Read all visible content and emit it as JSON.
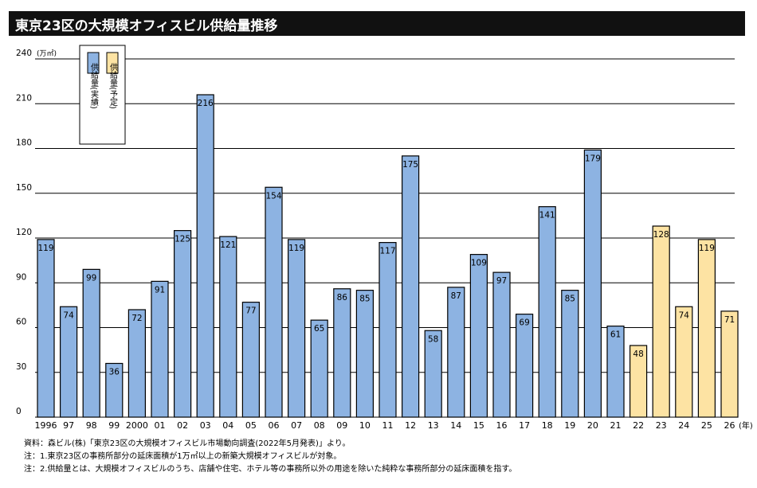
{
  "title": "東京23区の大規模オフィスビル供給量推移",
  "chart_data": {
    "type": "bar",
    "title": "東京23区の大規模オフィスビル供給量推移",
    "ylabel": "(万㎡)",
    "xlabel": "(年)",
    "ylim": [
      0,
      240
    ],
    "yticks": [
      0,
      30,
      60,
      90,
      120,
      150,
      180,
      210,
      240
    ],
    "grid": true,
    "legend_position": "top-left",
    "categories": [
      "1996",
      "97",
      "98",
      "99",
      "2000",
      "01",
      "02",
      "03",
      "04",
      "05",
      "06",
      "07",
      "08",
      "09",
      "10",
      "11",
      "12",
      "13",
      "14",
      "15",
      "16",
      "17",
      "18",
      "19",
      "20",
      "21",
      "22",
      "23",
      "24",
      "25",
      "26"
    ],
    "values": [
      119,
      74,
      99,
      36,
      72,
      91,
      125,
      216,
      121,
      77,
      154,
      119,
      65,
      86,
      85,
      117,
      175,
      58,
      87,
      109,
      97,
      69,
      141,
      85,
      179,
      61,
      48,
      128,
      74,
      119,
      71
    ],
    "series": [
      {
        "name": "供給量(実績)",
        "color": "#8db3e2",
        "from": "1996",
        "to": "21"
      },
      {
        "name": "供給量(予定)",
        "color": "#fde3a3",
        "from": "22",
        "to": "26"
      }
    ],
    "legend": [
      {
        "label": "供給量(実績)",
        "color": "#8db3e2"
      },
      {
        "label": "供給量(予定)",
        "color": "#fde3a3"
      }
    ]
  },
  "notes": [
    "資料：森ビル(株)「東京23区の大規模オフィスビル市場動向調査(2022年5月発表)」より。",
    "注：1.東京23区の事務所部分の延床面積が1万㎡以上の新築大規模オフィスビルが対象。",
    "注：2.供給量とは、大規模オフィスビルのうち、店舗や住宅、ホテル等の事務所以外の用途を除いた純粋な事務所部分の延床面積を指す。"
  ]
}
